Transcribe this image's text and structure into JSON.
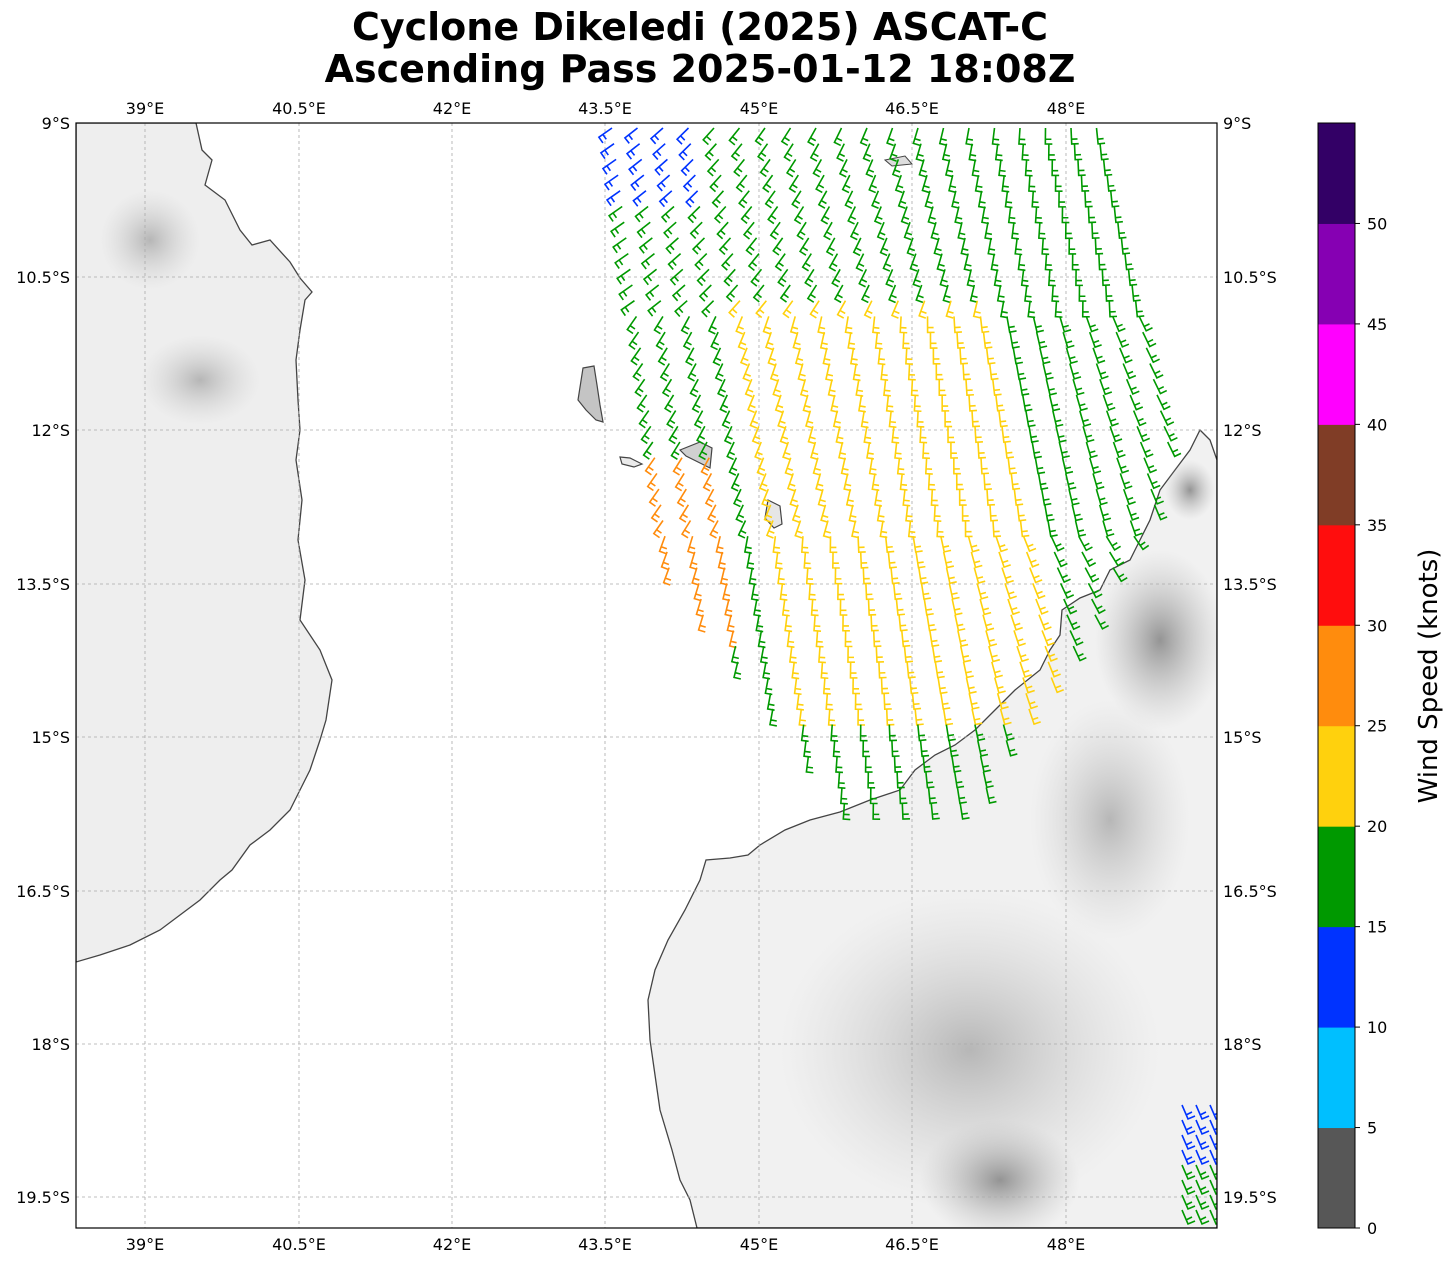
{
  "title_line1": "Cyclone Dikeledi (2025) ASCAT-C",
  "title_line2": "Ascending Pass 2025-01-12 18:08Z",
  "map": {
    "lon_range": [
      37.8,
      49.0
    ],
    "lat_range": [
      -9.0,
      -19.8
    ],
    "lon_ticks": [
      {
        "value": 39.0,
        "label": "39°E"
      },
      {
        "value": 40.5,
        "label": "40.5°E"
      },
      {
        "value": 42.0,
        "label": "42°E"
      },
      {
        "value": 43.5,
        "label": "43.5°E"
      },
      {
        "value": 45.0,
        "label": "45°E"
      },
      {
        "value": 46.5,
        "label": "46.5°E"
      },
      {
        "value": 48.0,
        "label": "48°E"
      }
    ],
    "lat_ticks": [
      {
        "value": -9.0,
        "label": "9°S"
      },
      {
        "value": -10.5,
        "label": "10.5°S"
      },
      {
        "value": -12.0,
        "label": "12°S"
      },
      {
        "value": -13.5,
        "label": "13.5°S"
      },
      {
        "value": -15.0,
        "label": "15°S"
      },
      {
        "value": -16.5,
        "label": "16.5°S"
      },
      {
        "value": -18.0,
        "label": "18°S"
      },
      {
        "value": -19.5,
        "label": "19.5°S"
      }
    ],
    "gridlines": true,
    "land_shading": "grayscale topography",
    "coastline_color": "#444444"
  },
  "colorbar": {
    "label": "Wind Speed (knots)",
    "bins": [
      {
        "min": 0,
        "max": 5,
        "color": "#575757"
      },
      {
        "min": 5,
        "max": 10,
        "color": "#00bfff"
      },
      {
        "min": 10,
        "max": 15,
        "color": "#0033ff"
      },
      {
        "min": 15,
        "max": 20,
        "color": "#009900"
      },
      {
        "min": 20,
        "max": 25,
        "color": "#ffd10d"
      },
      {
        "min": 25,
        "max": 30,
        "color": "#ff8c0d"
      },
      {
        "min": 30,
        "max": 35,
        "color": "#ff0d0d"
      },
      {
        "min": 35,
        "max": 40,
        "color": "#803d26"
      },
      {
        "min": 40,
        "max": 45,
        "color": "#ff00ff"
      },
      {
        "min": 45,
        "max": 50,
        "color": "#8600b3"
      },
      {
        "min": 50,
        "max": 55,
        "color": "#330066"
      }
    ],
    "tick_labels": [
      "0",
      "5",
      "10",
      "15",
      "20",
      "25",
      "30",
      "35",
      "40",
      "45",
      "50"
    ]
  }
}
